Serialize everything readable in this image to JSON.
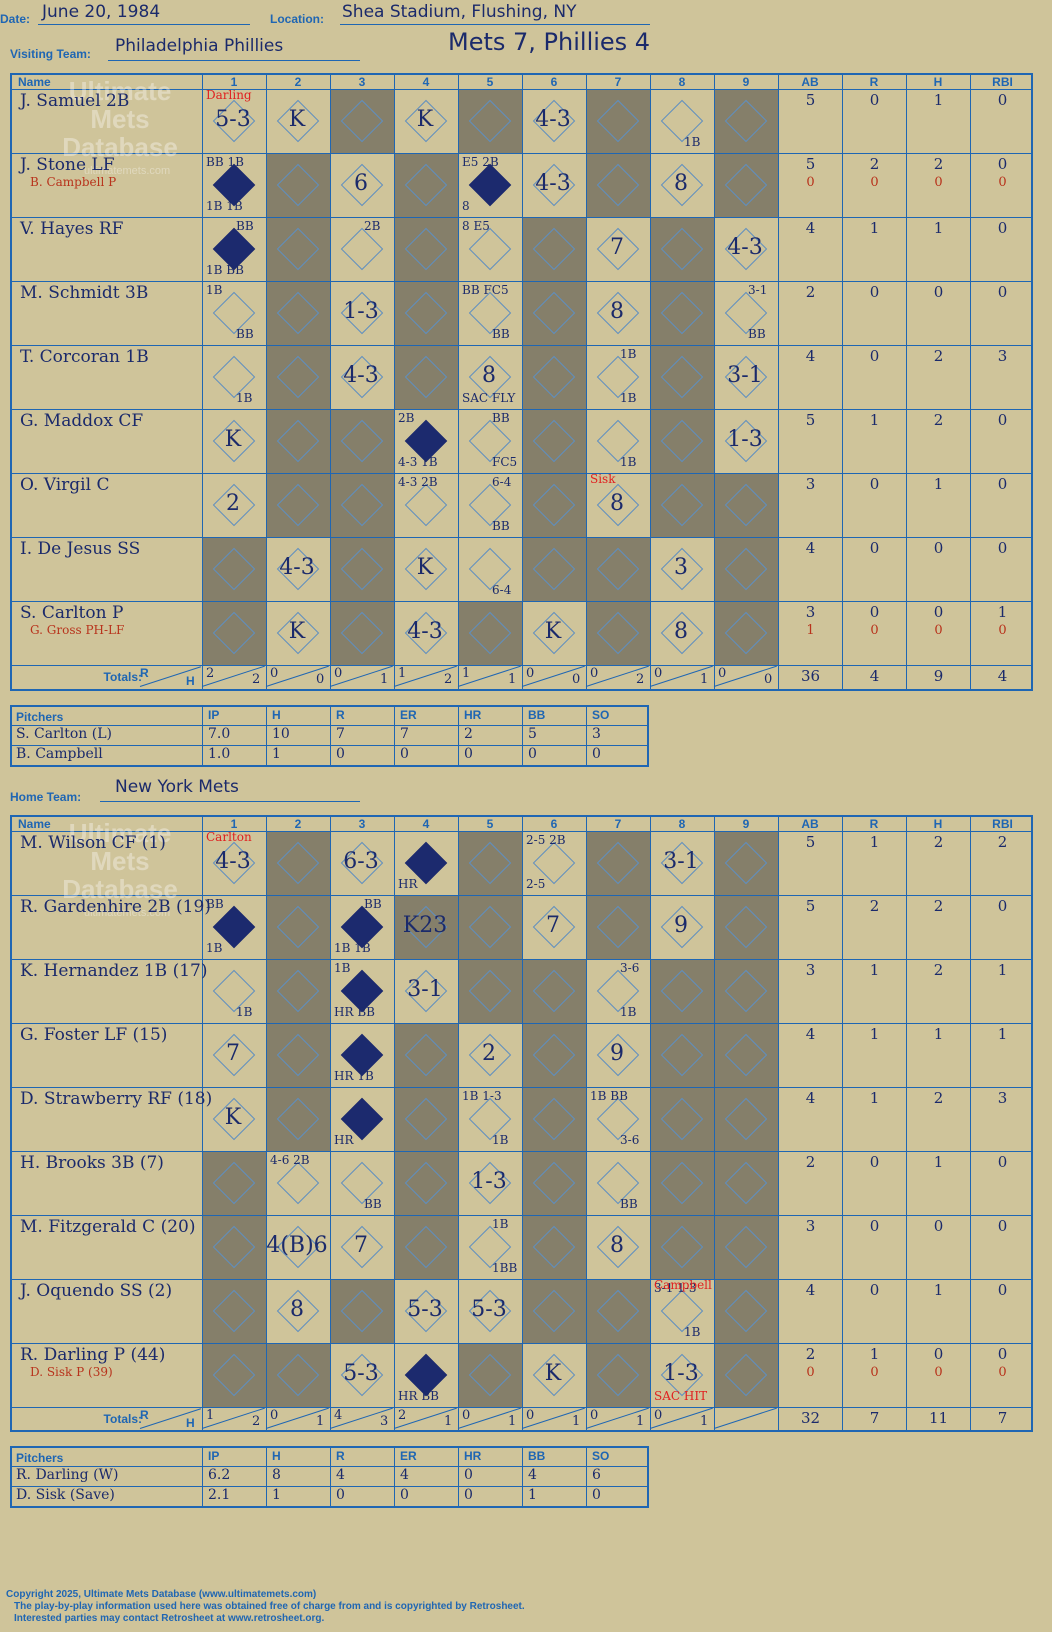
{
  "header": {
    "date_label": "Date:",
    "date": "June 20, 1984",
    "location_label": "Location:",
    "location": "Shea Stadium, Flushing, NY",
    "visiting_label": "Visiting Team:",
    "visiting_team": "Philadelphia Phillies",
    "home_label": "Home Team:",
    "home_team": "New York Mets",
    "result": "Mets 7, Phillies 4"
  },
  "columns": {
    "name": "Name",
    "innings": [
      "1",
      "2",
      "3",
      "4",
      "5",
      "6",
      "7",
      "8",
      "9"
    ],
    "stats": [
      "AB",
      "R",
      "H",
      "RBI"
    ]
  },
  "watermark": {
    "line1": "Ultimate",
    "line2": "Mets",
    "line3": "Database",
    "site": "ultimatemets.com"
  },
  "visitors": {
    "players": [
      {
        "name": "J. Samuel 2B",
        "sub": "",
        "stats": [
          "5",
          "0",
          "1",
          "0"
        ],
        "sub_stats": []
      },
      {
        "name": "J. Stone LF",
        "sub": "B. Campbell P",
        "stats": [
          "5",
          "2",
          "2",
          "0"
        ],
        "sub_stats": [
          "0",
          "0",
          "0",
          "0"
        ]
      },
      {
        "name": "V. Hayes RF",
        "sub": "",
        "stats": [
          "4",
          "1",
          "1",
          "0"
        ],
        "sub_stats": []
      },
      {
        "name": "M. Schmidt 3B",
        "sub": "",
        "stats": [
          "2",
          "0",
          "0",
          "0"
        ],
        "sub_stats": []
      },
      {
        "name": "T. Corcoran 1B",
        "sub": "",
        "stats": [
          "4",
          "0",
          "2",
          "3"
        ],
        "sub_stats": []
      },
      {
        "name": "G. Maddox CF",
        "sub": "",
        "stats": [
          "5",
          "1",
          "2",
          "0"
        ],
        "sub_stats": []
      },
      {
        "name": "O. Virgil C",
        "sub": "",
        "stats": [
          "3",
          "0",
          "1",
          "0"
        ],
        "sub_stats": []
      },
      {
        "name": "I. De Jesus SS",
        "sub": "",
        "stats": [
          "4",
          "0",
          "0",
          "0"
        ],
        "sub_stats": []
      },
      {
        "name": "S. Carlton P",
        "sub": "G. Gross PH-LF",
        "stats": [
          "3",
          "0",
          "0",
          "1"
        ],
        "sub_stats": [
          "1",
          "0",
          "0",
          "0"
        ]
      }
    ],
    "totals_label": "Totals:",
    "rh_r": "R",
    "rh_h": "H",
    "inning_totals": [
      [
        "2",
        "2"
      ],
      [
        "0",
        "0"
      ],
      [
        "0",
        "1"
      ],
      [
        "1",
        "2"
      ],
      [
        "1",
        "1"
      ],
      [
        "0",
        "0"
      ],
      [
        "0",
        "2"
      ],
      [
        "0",
        "1"
      ],
      [
        "0",
        "0"
      ]
    ],
    "game_totals": [
      "36",
      "4",
      "9",
      "4"
    ],
    "pitchers_label": "Pitchers",
    "pitcher_cols": [
      "IP",
      "H",
      "R",
      "ER",
      "HR",
      "BB",
      "SO"
    ],
    "pitchers": [
      {
        "name": "S. Carlton (L)",
        "line": [
          "7.0",
          "10",
          "7",
          "7",
          "2",
          "5",
          "3"
        ]
      },
      {
        "name": "B. Campbell",
        "line": [
          "1.0",
          "1",
          "0",
          "0",
          "0",
          "0",
          "0"
        ]
      }
    ]
  },
  "home": {
    "players": [
      {
        "name": "M. Wilson CF (1)",
        "sub": "",
        "stats": [
          "5",
          "1",
          "2",
          "2"
        ],
        "sub_stats": []
      },
      {
        "name": "R. Gardenhire 2B (19)",
        "sub": "",
        "stats": [
          "5",
          "2",
          "2",
          "0"
        ],
        "sub_stats": []
      },
      {
        "name": "K. Hernandez 1B (17)",
        "sub": "",
        "stats": [
          "3",
          "1",
          "2",
          "1"
        ],
        "sub_stats": []
      },
      {
        "name": "G. Foster LF (15)",
        "sub": "",
        "stats": [
          "4",
          "1",
          "1",
          "1"
        ],
        "sub_stats": []
      },
      {
        "name": "D. Strawberry RF (18)",
        "sub": "",
        "stats": [
          "4",
          "1",
          "2",
          "3"
        ],
        "sub_stats": []
      },
      {
        "name": "H. Brooks 3B (7)",
        "sub": "",
        "stats": [
          "2",
          "0",
          "1",
          "0"
        ],
        "sub_stats": []
      },
      {
        "name": "M. Fitzgerald C (20)",
        "sub": "",
        "stats": [
          "3",
          "0",
          "0",
          "0"
        ],
        "sub_stats": []
      },
      {
        "name": "J. Oquendo SS (2)",
        "sub": "",
        "stats": [
          "4",
          "0",
          "1",
          "0"
        ],
        "sub_stats": []
      },
      {
        "name": "R. Darling P (44)",
        "sub": "D. Sisk P (39)",
        "stats": [
          "2",
          "1",
          "0",
          "0"
        ],
        "sub_stats": [
          "0",
          "0",
          "0",
          "0"
        ]
      }
    ],
    "totals_label": "Totals:",
    "rh_r": "R",
    "rh_h": "H",
    "inning_totals": [
      [
        "1",
        "2"
      ],
      [
        "0",
        "1"
      ],
      [
        "4",
        "3"
      ],
      [
        "2",
        "1"
      ],
      [
        "0",
        "1"
      ],
      [
        "0",
        "1"
      ],
      [
        "0",
        "1"
      ],
      [
        "0",
        "1"
      ],
      [
        "",
        ""
      ]
    ],
    "game_totals": [
      "32",
      "7",
      "11",
      "7"
    ],
    "pitchers_label": "Pitchers",
    "pitcher_cols": [
      "IP",
      "H",
      "R",
      "ER",
      "HR",
      "BB",
      "SO"
    ],
    "pitchers": [
      {
        "name": "R. Darling (W)",
        "line": [
          "6.2",
          "8",
          "4",
          "4",
          "0",
          "4",
          "6"
        ]
      },
      {
        "name": "D. Sisk (Save)",
        "line": [
          "2.1",
          "1",
          "0",
          "0",
          "0",
          "1",
          "0"
        ]
      }
    ]
  },
  "visitor_cells": [
    [
      "5-3",
      "K",
      "",
      "K",
      "",
      "4-3",
      "",
      "",
      ""
    ],
    [
      "",
      "",
      "6",
      "",
      "",
      "4-3",
      "",
      "8",
      ""
    ],
    [
      "",
      "",
      "",
      "",
      "",
      "",
      "7",
      "",
      "4-3"
    ],
    [
      "",
      "",
      "1-3",
      "",
      "",
      "",
      "8",
      "",
      ""
    ],
    [
      "",
      "",
      "4-3",
      "",
      "8",
      "",
      "",
      "",
      "3-1"
    ],
    [
      "K",
      "",
      "",
      "",
      "",
      "",
      "",
      "",
      "1-3"
    ],
    [
      "2",
      "",
      "",
      "",
      "",
      "",
      "8",
      "",
      ""
    ],
    [
      "",
      "4-3",
      "",
      "K",
      "",
      "",
      "",
      "3",
      ""
    ],
    [
      "",
      "K",
      "",
      "4-3",
      "",
      "K",
      "",
      "8",
      ""
    ]
  ],
  "home_cells": [
    [
      "4-3",
      "",
      "6-3",
      "",
      "",
      "",
      "",
      "3-1",
      ""
    ],
    [
      "",
      "",
      "",
      "K23",
      "",
      "7",
      "",
      "9",
      ""
    ],
    [
      "",
      "",
      "",
      "3-1",
      "",
      "",
      "",
      "",
      ""
    ],
    [
      "7",
      "",
      "",
      "",
      "2",
      "",
      "9",
      "",
      ""
    ],
    [
      "K",
      "",
      "",
      "",
      "",
      "",
      "",
      "",
      ""
    ],
    [
      "",
      "",
      "",
      "",
      "1-3",
      "",
      "",
      "",
      ""
    ],
    [
      "",
      "4(B)6",
      "7",
      "",
      "",
      "",
      "8",
      "",
      ""
    ],
    [
      "",
      "8",
      "",
      "5-3",
      "5-3",
      "",
      "",
      "",
      ""
    ],
    [
      "",
      "",
      "5-3",
      "",
      "",
      "K",
      "",
      "1-3",
      ""
    ]
  ],
  "visitor_tiny": [
    {
      "r": 0,
      "c": 7,
      "t": "1B",
      "pos": "br"
    },
    {
      "r": 1,
      "c": 0,
      "t": "BB 1B",
      "pos": "tl"
    },
    {
      "r": 1,
      "c": 0,
      "t": "1B  1B",
      "pos": "bl"
    },
    {
      "r": 1,
      "c": 4,
      "t": "E5  2B",
      "pos": "tl"
    },
    {
      "r": 1,
      "c": 4,
      "t": "8",
      "pos": "bl"
    },
    {
      "r": 2,
      "c": 0,
      "t": "BB",
      "pos": "tr"
    },
    {
      "r": 2,
      "c": 0,
      "t": "1B  BB",
      "pos": "bl"
    },
    {
      "r": 2,
      "c": 2,
      "t": "2B",
      "pos": "tr"
    },
    {
      "r": 2,
      "c": 4,
      "t": "8   E5",
      "pos": "tl"
    },
    {
      "r": 3,
      "c": 0,
      "t": "1B",
      "pos": "tl"
    },
    {
      "r": 3,
      "c": 0,
      "t": "BB",
      "pos": "br"
    },
    {
      "r": 3,
      "c": 4,
      "t": "BB FC5",
      "pos": "tl"
    },
    {
      "r": 3,
      "c": 4,
      "t": "BB",
      "pos": "br"
    },
    {
      "r": 3,
      "c": 8,
      "t": "3-1",
      "pos": "tr"
    },
    {
      "r": 3,
      "c": 8,
      "t": "BB",
      "pos": "br"
    },
    {
      "r": 4,
      "c": 0,
      "t": "1B",
      "pos": "br"
    },
    {
      "r": 4,
      "c": 4,
      "t": "SAC FLY",
      "pos": "bl"
    },
    {
      "r": 4,
      "c": 6,
      "t": "1B",
      "pos": "tr"
    },
    {
      "r": 4,
      "c": 6,
      "t": "1B",
      "pos": "br"
    },
    {
      "r": 5,
      "c": 3,
      "t": "2B",
      "pos": "tl"
    },
    {
      "r": 5,
      "c": 3,
      "t": "4-3 1B",
      "pos": "bl"
    },
    {
      "r": 5,
      "c": 4,
      "t": "BB",
      "pos": "tr"
    },
    {
      "r": 5,
      "c": 4,
      "t": "FC5",
      "pos": "br"
    },
    {
      "r": 5,
      "c": 6,
      "t": "1B",
      "pos": "br"
    },
    {
      "r": 6,
      "c": 3,
      "t": "4-3 2B",
      "pos": "tl"
    },
    {
      "r": 6,
      "c": 4,
      "t": "6-4",
      "pos": "tr"
    },
    {
      "r": 6,
      "c": 4,
      "t": "BB",
      "pos": "br"
    },
    {
      "r": 7,
      "c": 4,
      "t": "6-4",
      "pos": "br"
    }
  ],
  "home_tiny": [
    {
      "r": 0,
      "c": 3,
      "t": "HR",
      "pos": "bl"
    },
    {
      "r": 0,
      "c": 5,
      "t": "2-5 2B",
      "pos": "tl"
    },
    {
      "r": 0,
      "c": 5,
      "t": "2-5",
      "pos": "bl"
    },
    {
      "r": 1,
      "c": 0,
      "t": "BB",
      "pos": "tl"
    },
    {
      "r": 1,
      "c": 0,
      "t": "1B",
      "pos": "bl"
    },
    {
      "r": 1,
      "c": 2,
      "t": "BB",
      "pos": "tr"
    },
    {
      "r": 1,
      "c": 2,
      "t": "1B 1B",
      "pos": "bl"
    },
    {
      "r": 2,
      "c": 0,
      "t": "1B",
      "pos": "br"
    },
    {
      "r": 2,
      "c": 2,
      "t": "1B",
      "pos": "tl"
    },
    {
      "r": 2,
      "c": 2,
      "t": "HR BB",
      "pos": "bl"
    },
    {
      "r": 2,
      "c": 6,
      "t": "3-6",
      "pos": "tr"
    },
    {
      "r": 2,
      "c": 6,
      "t": "1B",
      "pos": "br"
    },
    {
      "r": 3,
      "c": 2,
      "t": "HR 1B",
      "pos": "bl"
    },
    {
      "r": 4,
      "c": 2,
      "t": "HR",
      "pos": "bl"
    },
    {
      "r": 4,
      "c": 4,
      "t": "1B 1-3",
      "pos": "tl"
    },
    {
      "r": 4,
      "c": 4,
      "t": "1B",
      "pos": "br"
    },
    {
      "r": 4,
      "c": 6,
      "t": "1B BB",
      "pos": "tl"
    },
    {
      "r": 4,
      "c": 6,
      "t": "3-6",
      "pos": "br"
    },
    {
      "r": 5,
      "c": 1,
      "t": "4-6 2B",
      "pos": "tl"
    },
    {
      "r": 5,
      "c": 2,
      "t": "BB",
      "pos": "br"
    },
    {
      "r": 5,
      "c": 6,
      "t": "BB",
      "pos": "br"
    },
    {
      "r": 6,
      "c": 4,
      "t": "1B",
      "pos": "tr"
    },
    {
      "r": 6,
      "c": 4,
      "t": "1BB",
      "pos": "br"
    },
    {
      "r": 7,
      "c": 7,
      "t": "3-1 1-3",
      "pos": "tl"
    },
    {
      "r": 7,
      "c": 7,
      "t": "1B",
      "pos": "br"
    },
    {
      "r": 8,
      "c": 3,
      "t": "HR BB",
      "pos": "bl"
    }
  ],
  "visitor_notes": [
    {
      "r": 0,
      "c": 0,
      "t": "Darling"
    },
    {
      "r": 6,
      "c": 6,
      "t": "Sisk"
    }
  ],
  "home_notes": [
    {
      "r": 0,
      "c": 0,
      "t": "Carlton"
    },
    {
      "r": 7,
      "c": 7,
      "t": "Campbell"
    },
    {
      "r": 8,
      "c": 7,
      "t": "SAC HIT"
    }
  ],
  "footer": {
    "line1": "Copyright 2025, Ultimate Mets Database (www.ultimatemets.com)",
    "line2": "The play-by-play information used here was obtained free of charge from and is copyrighted by Retrosheet.",
    "line3": "Interested parties may contact Retrosheet at www.retrosheet.org."
  }
}
